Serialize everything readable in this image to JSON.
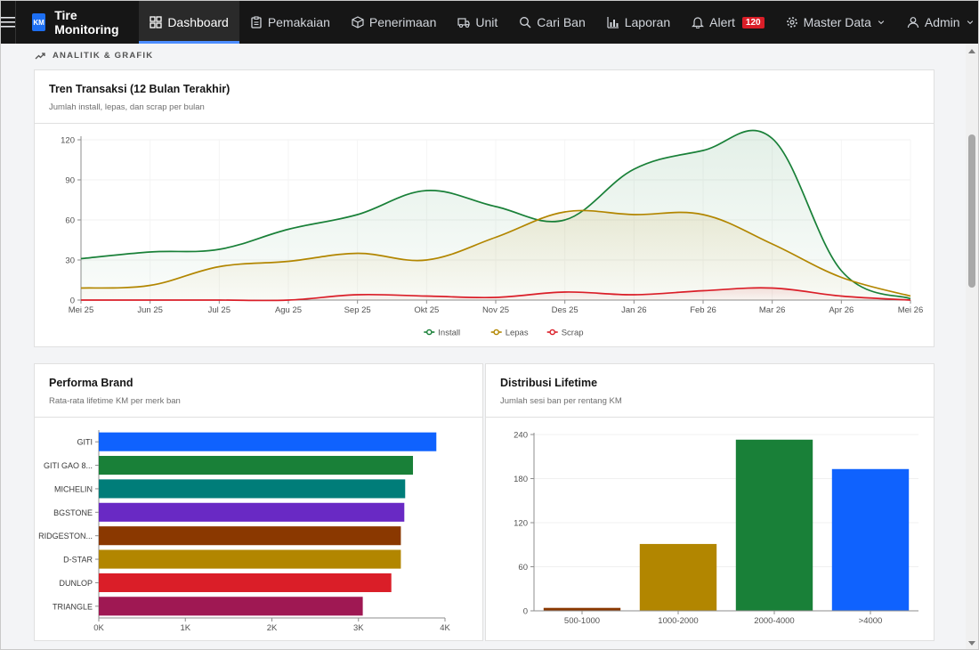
{
  "app": {
    "logo_text": "KM",
    "name": "Tire Monitoring"
  },
  "nav": {
    "items": [
      {
        "key": "dashboard",
        "label": "Dashboard",
        "icon": "dashboard-icon"
      },
      {
        "key": "pemakaian",
        "label": "Pemakaian",
        "icon": "clipboard-icon"
      },
      {
        "key": "penerimaan",
        "label": "Penerimaan",
        "icon": "package-icon"
      },
      {
        "key": "unit",
        "label": "Unit",
        "icon": "truck-icon"
      },
      {
        "key": "cari_ban",
        "label": "Cari Ban",
        "icon": "search-icon"
      },
      {
        "key": "laporan",
        "label": "Laporan",
        "icon": "bar-chart-icon"
      },
      {
        "key": "alert",
        "label": "Alert",
        "icon": "bell-icon"
      }
    ],
    "alert_count": "120",
    "master_data": "Master Data",
    "user": "Admin"
  },
  "section_label": "ANALITIK & GRAFIK",
  "trend_card": {
    "title": "Tren Transaksi (12 Bulan Terakhir)",
    "subtitle": "Jumlah install, lepas, dan scrap per bulan"
  },
  "brand_card": {
    "title": "Performa Brand",
    "subtitle": "Rata-rata lifetime KM per merk ban"
  },
  "lifetime_card": {
    "title": "Distribusi Lifetime",
    "subtitle": "Jumlah sesi ban per rentang KM"
  },
  "colors": {
    "install": "#198038",
    "lepas": "#b28600",
    "scrap": "#da1e28",
    "accent": "#4c8dff"
  },
  "chart_data": [
    {
      "type": "line",
      "categories": [
        "Mei 25",
        "Jun 25",
        "Jul 25",
        "Agu 25",
        "Sep 25",
        "Okt 25",
        "Nov 25",
        "Des 25",
        "Jan 26",
        "Feb 26",
        "Mar 26",
        "Apr 26",
        "Mei 26"
      ],
      "ylim": [
        0,
        120
      ],
      "yticks": [
        0,
        30,
        60,
        90,
        120
      ],
      "legend_position": "bottom",
      "series": [
        {
          "name": "Install",
          "color": "#198038",
          "values": [
            31,
            36,
            38,
            53,
            64,
            82,
            70,
            60,
            98,
            112,
            121,
            22,
            1
          ]
        },
        {
          "name": "Lepas",
          "color": "#b28600",
          "values": [
            9,
            11,
            25,
            29,
            35,
            30,
            47,
            66,
            64,
            64,
            42,
            17,
            3
          ]
        },
        {
          "name": "Scrap",
          "color": "#da1e28",
          "values": [
            0,
            0,
            0,
            0,
            4,
            3,
            2,
            6,
            4,
            7,
            9,
            3,
            0
          ]
        }
      ]
    },
    {
      "type": "bar",
      "orientation": "horizontal",
      "categories": [
        "GITI",
        "GITI GAO 8...",
        "MICHELIN",
        "BGSTONE",
        "RIDGESTON...",
        "D-STAR",
        "DUNLOP",
        "TRIANGLE"
      ],
      "values": [
        3900,
        3630,
        3540,
        3530,
        3490,
        3490,
        3380,
        3050
      ],
      "colors": [
        "#0f62fe",
        "#198038",
        "#007d79",
        "#6929c4",
        "#8a3800",
        "#b28600",
        "#da1e28",
        "#9f1853"
      ],
      "xlim": [
        0,
        4000
      ],
      "xtick_labels": [
        "0K",
        "1K",
        "2K",
        "3K",
        "4K"
      ]
    },
    {
      "type": "bar",
      "orientation": "vertical",
      "categories": [
        "500-1000",
        "1000-2000",
        "2000-4000",
        ">4000"
      ],
      "values": [
        4,
        91,
        233,
        193
      ],
      "colors": [
        "#8a3800",
        "#b28600",
        "#198038",
        "#0f62fe"
      ],
      "ylim": [
        0,
        240
      ],
      "yticks": [
        0,
        60,
        120,
        180,
        240
      ]
    }
  ]
}
